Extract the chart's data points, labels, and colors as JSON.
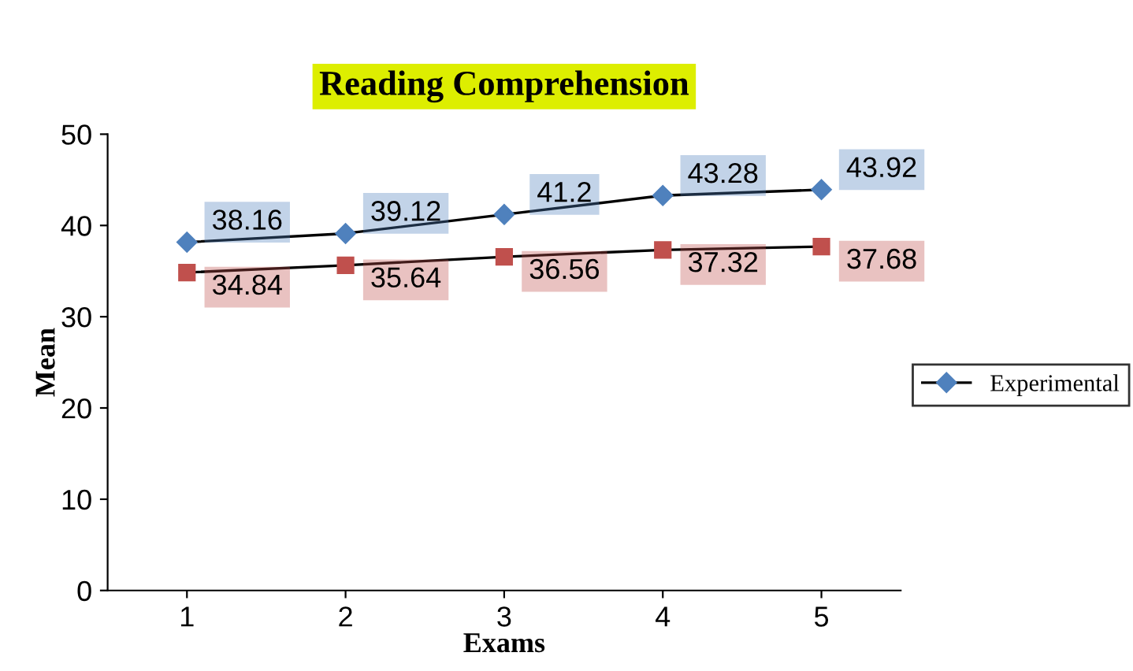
{
  "chart_data": {
    "type": "line",
    "title": "Reading Comprehension",
    "xlabel": "Exams",
    "ylabel": "Mean",
    "categories": [
      "1",
      "2",
      "3",
      "4",
      "5"
    ],
    "series": [
      {
        "name": "Experimental",
        "color": "#4f81bd",
        "values": [
          38.16,
          39.12,
          41.2,
          43.28,
          43.92
        ],
        "marker": "diamond"
      },
      {
        "color": "#c0504d",
        "values": [
          34.84,
          35.64,
          36.56,
          37.32,
          37.68
        ],
        "marker": "square"
      }
    ],
    "ylim": [
      0,
      50
    ],
    "yticks": [
      0,
      10,
      20,
      30,
      40,
      50
    ],
    "grid": false,
    "legend": "right",
    "data_labels": true,
    "line_style": "solid"
  }
}
